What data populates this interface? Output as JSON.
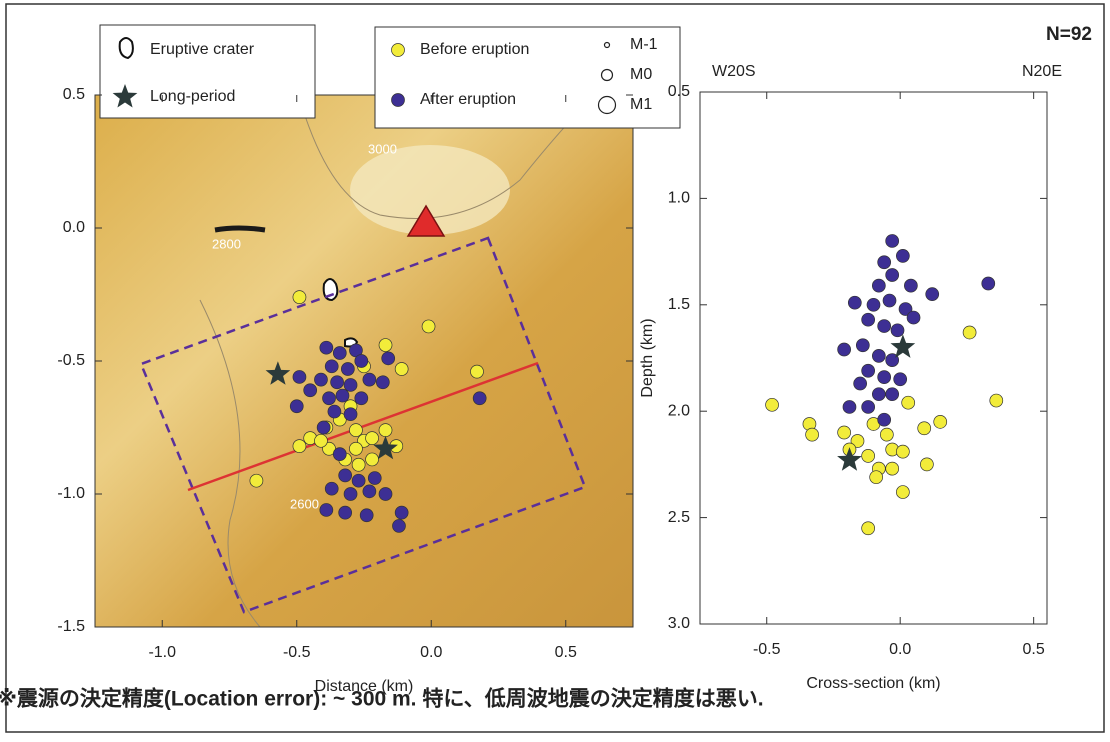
{
  "chart_data": [
    {
      "type": "scatter",
      "xlabel": "Distance (km)",
      "xlim": [
        -1.25,
        0.75
      ],
      "xticks": [
        {
          "value": -1.0,
          "label": "-1.0"
        },
        -0.5,
        {
          "value": 0.0,
          "label": "0.0"
        },
        0.5
      ],
      "ylim": [
        -1.5,
        0.5
      ],
      "yticks": [
        -1.5,
        {
          "value": -1.0,
          "label": "-1.0"
        },
        -0.5,
        {
          "value": 0.0,
          "label": "0.0"
        },
        0.5
      ],
      "crater_label": "Eruptive crater",
      "size_legend": [
        "M-1",
        "M0",
        "M1"
      ],
      "contour_labels": [
        "3000",
        "2800",
        "2600"
      ],
      "series": [
        {
          "name": "Before eruption",
          "color": "#f2ec3a",
          "marker": "circle",
          "x": [
            -0.49,
            -0.01,
            -0.17,
            -0.25,
            -0.11,
            0.17,
            -0.45,
            -0.49,
            -0.34,
            -0.28,
            -0.25,
            -0.22,
            -0.28,
            -0.17,
            -0.38,
            -0.32,
            -0.27,
            -0.22,
            -0.65,
            -0.39,
            -0.41,
            -0.3,
            -0.13
          ],
          "values": [
            -0.26,
            -0.37,
            -0.44,
            -0.52,
            -0.53,
            -0.54,
            -0.79,
            -0.82,
            -0.72,
            -0.76,
            -0.8,
            -0.79,
            -0.83,
            -0.76,
            -0.83,
            -0.87,
            -0.89,
            -0.87,
            -0.95,
            -0.75,
            -0.8,
            -0.67,
            -0.82
          ]
        },
        {
          "name": "After eruption",
          "color": "#3d2f94",
          "marker": "circle",
          "x": [
            -0.39,
            -0.34,
            -0.28,
            -0.37,
            -0.31,
            -0.26,
            -0.41,
            -0.35,
            -0.3,
            -0.23,
            -0.38,
            -0.33,
            -0.26,
            -0.5,
            -0.45,
            -0.49,
            -0.36,
            -0.3,
            -0.18,
            -0.16,
            0.18,
            -0.4,
            -0.32,
            -0.27,
            -0.21,
            -0.37,
            -0.3,
            -0.23,
            -0.17,
            -0.39,
            -0.32,
            -0.24,
            -0.12,
            -0.11,
            -0.34
          ],
          "values": [
            -0.45,
            -0.47,
            -0.46,
            -0.52,
            -0.53,
            -0.5,
            -0.57,
            -0.58,
            -0.59,
            -0.57,
            -0.64,
            -0.63,
            -0.64,
            -0.67,
            -0.61,
            -0.56,
            -0.69,
            -0.7,
            -0.58,
            -0.49,
            -0.64,
            -0.75,
            -0.93,
            -0.95,
            -0.94,
            -0.98,
            -1.0,
            -0.99,
            -1.0,
            -1.06,
            -1.07,
            -1.08,
            -1.12,
            -1.07,
            -0.85
          ]
        },
        {
          "name": "Long-period",
          "color": "#2b3a3a",
          "marker": "star",
          "x": [
            -0.57,
            -0.17
          ],
          "values": [
            -0.55,
            -0.83
          ]
        }
      ]
    },
    {
      "type": "scatter",
      "xlabel": "Cross-section (km)",
      "ylabel": "Depth (km)",
      "top_labels": [
        "W20S",
        "N20E"
      ],
      "annotation": "N=92",
      "xlim": [
        -0.75,
        0.55
      ],
      "xticks": [
        -0.5,
        {
          "value": 0.0,
          "label": "0.0"
        },
        0.5
      ],
      "ylim": [
        3.0,
        0.5
      ],
      "yticks": [
        0.5,
        {
          "value": 1.0,
          "label": "1.0"
        },
        1.5,
        {
          "value": 2.0,
          "label": "2.0"
        },
        2.5,
        {
          "value": 3.0,
          "label": "3.0"
        }
      ],
      "series": [
        {
          "color": "#f2ec3a",
          "marker": "circle",
          "x": [
            -0.48,
            -0.34,
            -0.33,
            -0.21,
            -0.16,
            -0.1,
            -0.05,
            -0.19,
            -0.12,
            -0.03,
            0.01,
            -0.08,
            -0.03,
            -0.09,
            0.01,
            0.09,
            0.15,
            0.1,
            0.26,
            0.36,
            -0.12,
            0.03
          ],
          "values": [
            1.97,
            2.06,
            2.11,
            2.1,
            2.14,
            2.06,
            2.11,
            2.18,
            2.21,
            2.18,
            2.19,
            2.27,
            2.27,
            2.31,
            2.38,
            2.08,
            2.05,
            2.25,
            1.63,
            1.95,
            2.55,
            1.96
          ]
        },
        {
          "color": "#3d2f94",
          "marker": "circle",
          "x": [
            -0.03,
            0.01,
            -0.06,
            -0.03,
            -0.08,
            0.04,
            -0.17,
            -0.1,
            -0.04,
            0.02,
            -0.12,
            -0.06,
            -0.01,
            0.05,
            -0.21,
            -0.14,
            -0.08,
            -0.03,
            -0.12,
            -0.06,
            0.0,
            -0.08,
            -0.03,
            -0.19,
            -0.12,
            -0.06,
            0.33,
            0.12,
            -0.15
          ],
          "values": [
            1.2,
            1.27,
            1.3,
            1.36,
            1.41,
            1.41,
            1.49,
            1.5,
            1.48,
            1.52,
            1.57,
            1.6,
            1.62,
            1.56,
            1.71,
            1.69,
            1.74,
            1.76,
            1.81,
            1.84,
            1.85,
            1.92,
            1.92,
            1.98,
            1.98,
            2.04,
            1.4,
            1.45,
            1.87
          ]
        },
        {
          "color": "#2b3a3a",
          "marker": "star",
          "x": [
            -0.19,
            0.01
          ],
          "values": [
            2.23,
            1.7
          ]
        }
      ]
    }
  ],
  "footer": "※震源の決定精度(Location error): ~ 300 m. 特に、低周波地震の決定精度は悪い."
}
